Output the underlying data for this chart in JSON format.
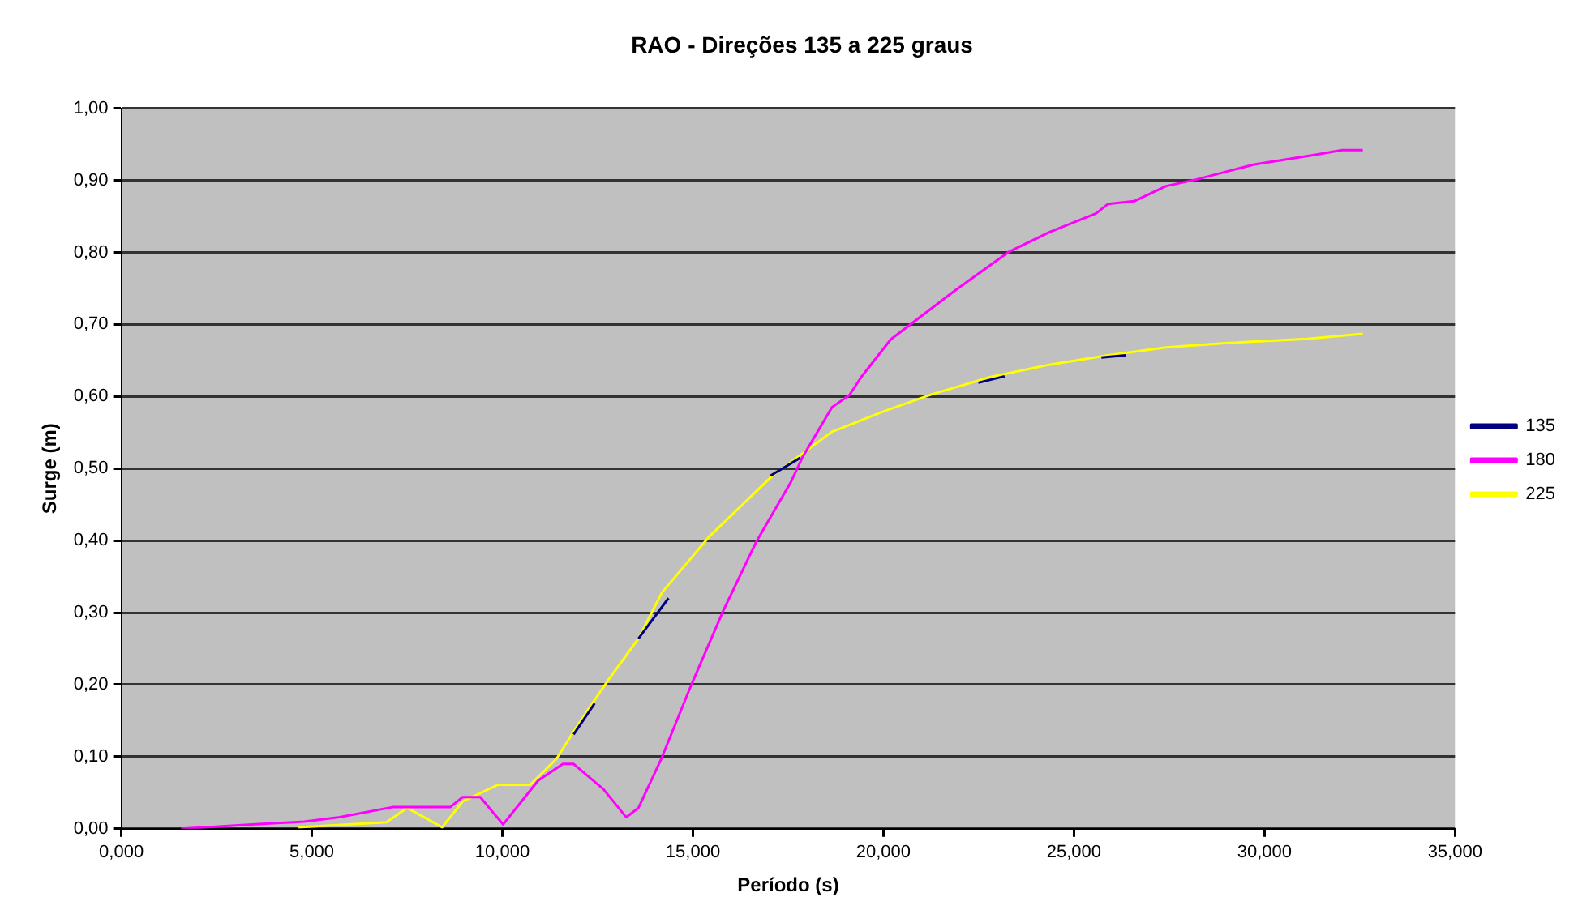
{
  "chart_data": {
    "type": "line",
    "title": "RAO - Direções 135 a 225 graus",
    "xlabel": "Período (s)",
    "ylabel": "Surge (m)",
    "series": [
      {
        "name": "135",
        "color": "#000080",
        "x": [
          11.87,
          12.42,
          13,
          13.57,
          14.36,
          15.7,
          17.04,
          17.82,
          20.2,
          22.49,
          23.18,
          24.5,
          25.72,
          26.36
        ],
        "values": [
          0.131,
          0.174,
          null,
          0.264,
          0.32,
          null,
          0.49,
          0.515,
          null,
          0.619,
          0.628,
          null,
          0.654,
          0.657
        ]
      },
      {
        "name": "180",
        "color": "#ff00ff",
        "x": [
          1.57,
          3.42,
          4.8,
          5.73,
          7.11,
          8.63,
          8.96,
          9.42,
          10.02,
          10.94,
          11.59,
          11.87,
          12.65,
          13.25,
          13.57,
          14.17,
          14.96,
          15.8,
          16.65,
          17.58,
          17.88,
          18.65,
          19.11,
          19.42,
          20.19,
          20.81,
          21.88,
          23.27,
          24.35,
          25.58,
          25.89,
          26.58,
          27.42,
          28.2,
          29.73,
          31.27,
          32.04,
          32.58
        ],
        "values": [
          0.0,
          0.006,
          0.01,
          0.016,
          0.03,
          0.03,
          0.044,
          0.044,
          0.006,
          0.067,
          0.09,
          0.09,
          0.055,
          0.016,
          0.029,
          0.097,
          0.2,
          0.303,
          0.397,
          0.482,
          0.516,
          0.585,
          0.602,
          0.627,
          0.679,
          0.704,
          0.747,
          0.8,
          0.828,
          0.854,
          0.867,
          0.871,
          0.892,
          0.901,
          0.922,
          0.935,
          0.942,
          0.942
        ]
      },
      {
        "name": "225",
        "color": "#ffff00",
        "x": [
          4.65,
          6.96,
          7.5,
          8.42,
          8.96,
          9.88,
          10.73,
          11.42,
          12.04,
          12.8,
          13.57,
          14.19,
          15.42,
          17.11,
          18.65,
          20.04,
          21.27,
          22.81,
          24.35,
          25.89,
          27.42,
          28.96,
          31.12,
          32.58
        ],
        "values": [
          0.002,
          0.009,
          0.029,
          0.002,
          0.038,
          0.061,
          0.061,
          0.097,
          0.149,
          0.208,
          0.264,
          0.328,
          0.405,
          0.491,
          0.551,
          0.58,
          0.603,
          0.627,
          0.644,
          0.657,
          0.668,
          0.674,
          0.68,
          0.687
        ]
      }
    ],
    "xlim": [
      0,
      35
    ],
    "xticks": [
      {
        "value": 0,
        "label": "0,000"
      },
      {
        "value": 5,
        "label": "5,000"
      },
      {
        "value": 10,
        "label": "10,000"
      },
      {
        "value": 15,
        "label": "15,000"
      },
      {
        "value": 20,
        "label": "20,000"
      },
      {
        "value": 25,
        "label": "25,000"
      },
      {
        "value": 30,
        "label": "30,000"
      },
      {
        "value": 35,
        "label": "35,000"
      }
    ],
    "ylim": [
      0,
      1
    ],
    "yticks": [
      {
        "value": 0,
        "label": "0,00"
      },
      {
        "value": 0.1,
        "label": "0,10"
      },
      {
        "value": 0.2,
        "label": "0,20"
      },
      {
        "value": 0.3,
        "label": "0,30"
      },
      {
        "value": 0.4,
        "label": "0,40"
      },
      {
        "value": 0.5,
        "label": "0,50"
      },
      {
        "value": 0.6,
        "label": "0,60"
      },
      {
        "value": 0.7,
        "label": "0,70"
      },
      {
        "value": 0.8,
        "label": "0,80"
      },
      {
        "value": 0.9,
        "label": "0,90"
      },
      {
        "value": 1,
        "label": "1,00"
      }
    ],
    "grid": "y",
    "legend": "right",
    "marker": "none",
    "line_style": "solid"
  }
}
